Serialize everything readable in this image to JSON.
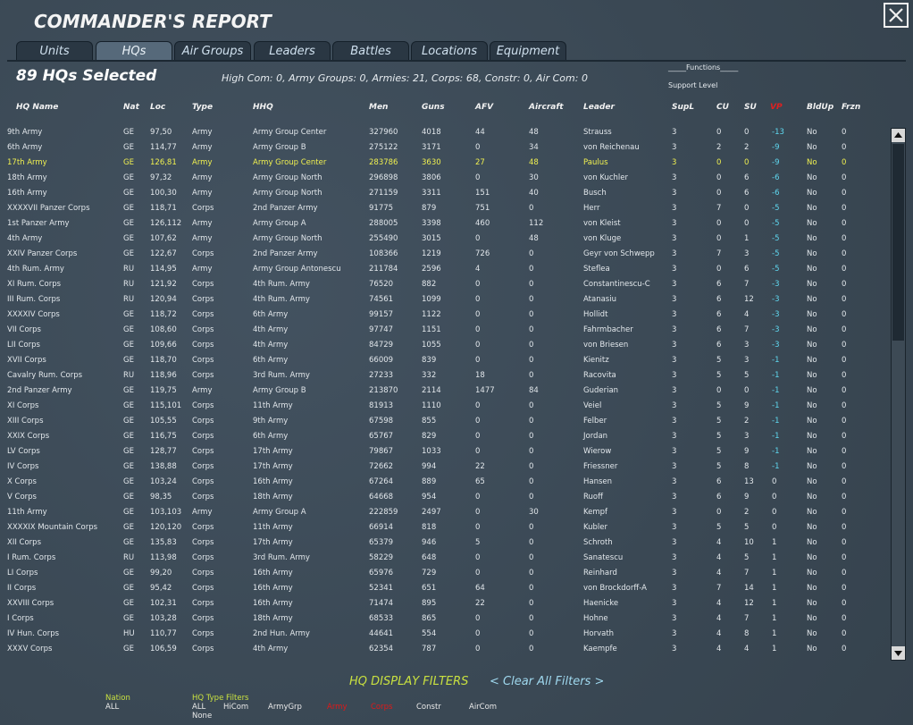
{
  "header": {
    "title": "COMMANDER'S REPORT"
  },
  "tabs": [
    {
      "label": "Units",
      "active": false
    },
    {
      "label": "HQs",
      "active": true
    },
    {
      "label": "Air Groups",
      "active": false
    },
    {
      "label": "Leaders",
      "active": false
    },
    {
      "label": "Battles",
      "active": false
    },
    {
      "label": "Locations",
      "active": false
    },
    {
      "label": "Equipment",
      "active": false
    }
  ],
  "selection_title": "89 HQs Selected",
  "summary": "High Com: 0, Army Groups: 0, Armies: 21, Corps: 68, Constr: 0, Air Com: 0",
  "functions_label": "_____Functions_____",
  "support_level": "Support Level",
  "table": {
    "columns": [
      "HQ Name",
      "Nat",
      "Loc",
      "Type",
      "HHQ",
      "Men",
      "Guns",
      "AFV",
      "Aircraft",
      "Leader",
      "SupL",
      "CU",
      "SU",
      "VP",
      "BldUp",
      "Frzn"
    ],
    "rows": [
      [
        "9th Army",
        "GE",
        "97,50",
        "Army",
        "Army Group Center",
        327960,
        4018,
        44,
        48,
        "Strauss",
        3,
        0,
        0,
        -13,
        "No",
        0
      ],
      [
        "6th Army",
        "GE",
        "114,77",
        "Army",
        "Army Group B",
        275122,
        3171,
        0,
        34,
        "von Reichenau",
        3,
        2,
        2,
        -9,
        "No",
        0
      ],
      [
        "17th Army",
        "GE",
        "126,81",
        "Army",
        "Army Group Center",
        283786,
        3630,
        27,
        48,
        "Paulus",
        3,
        0,
        0,
        -9,
        "No",
        0
      ],
      [
        "18th Army",
        "GE",
        "97,32",
        "Army",
        "Army Group North",
        296898,
        3806,
        0,
        30,
        "von Kuchler",
        3,
        0,
        6,
        -6,
        "No",
        0
      ],
      [
        "16th Army",
        "GE",
        "100,30",
        "Army",
        "Army Group North",
        271159,
        3311,
        151,
        40,
        "Busch",
        3,
        0,
        6,
        -6,
        "No",
        0
      ],
      [
        "XXXXVII Panzer Corps",
        "GE",
        "118,71",
        "Corps",
        "2nd Panzer Army",
        91775,
        879,
        751,
        0,
        "Herr",
        3,
        7,
        0,
        -5,
        "No",
        0
      ],
      [
        "1st Panzer Army",
        "GE",
        "126,112",
        "Army",
        "Army Group A",
        288005,
        3398,
        460,
        112,
        "von Kleist",
        3,
        0,
        0,
        -5,
        "No",
        0
      ],
      [
        "4th Army",
        "GE",
        "107,62",
        "Army",
        "Army Group North",
        255490,
        3015,
        0,
        48,
        "von Kluge",
        3,
        0,
        1,
        -5,
        "No",
        0
      ],
      [
        "XXIV Panzer Corps",
        "GE",
        "122,67",
        "Corps",
        "2nd Panzer Army",
        108366,
        1219,
        726,
        0,
        "Geyr von Schwepp",
        3,
        7,
        3,
        -5,
        "No",
        0
      ],
      [
        "4th Rum. Army",
        "RU",
        "114,95",
        "Army",
        "Army Group Antonescu",
        211784,
        2596,
        4,
        0,
        "Steflea",
        3,
        0,
        6,
        -5,
        "No",
        0
      ],
      [
        "XI Rum. Corps",
        "RU",
        "121,92",
        "Corps",
        "4th Rum. Army",
        76520,
        882,
        0,
        0,
        "Constantinescu-C",
        3,
        6,
        7,
        -3,
        "No",
        0
      ],
      [
        "III Rum. Corps",
        "RU",
        "120,94",
        "Corps",
        "4th Rum. Army",
        74561,
        1099,
        0,
        0,
        "Atanasiu",
        3,
        6,
        12,
        -3,
        "No",
        0
      ],
      [
        "XXXXIV Corps",
        "GE",
        "118,72",
        "Corps",
        "6th Army",
        99157,
        1122,
        0,
        0,
        "Hollidt",
        3,
        6,
        4,
        -3,
        "No",
        0
      ],
      [
        "VII Corps",
        "GE",
        "108,60",
        "Corps",
        "4th Army",
        97747,
        1151,
        0,
        0,
        "Fahrmbacher",
        3,
        6,
        7,
        -3,
        "No",
        0
      ],
      [
        "LII Corps",
        "GE",
        "109,66",
        "Corps",
        "4th Army",
        84729,
        1055,
        0,
        0,
        "von Briesen",
        3,
        6,
        3,
        -3,
        "No",
        0
      ],
      [
        "XVII Corps",
        "GE",
        "118,70",
        "Corps",
        "6th Army",
        66009,
        839,
        0,
        0,
        "Kienitz",
        3,
        5,
        3,
        -1,
        "No",
        0
      ],
      [
        "Cavalry Rum. Corps",
        "RU",
        "118,96",
        "Corps",
        "3rd Rum. Army",
        27233,
        332,
        18,
        0,
        "Racovita",
        3,
        5,
        5,
        -1,
        "No",
        0
      ],
      [
        "2nd Panzer Army",
        "GE",
        "119,75",
        "Army",
        "Army Group B",
        213870,
        2114,
        1477,
        84,
        "Guderian",
        3,
        0,
        0,
        -1,
        "No",
        0
      ],
      [
        "XI Corps",
        "GE",
        "115,101",
        "Corps",
        "11th Army",
        81913,
        1110,
        0,
        0,
        "Veiel",
        3,
        5,
        9,
        -1,
        "No",
        0
      ],
      [
        "XIII Corps",
        "GE",
        "105,55",
        "Corps",
        "9th Army",
        67598,
        855,
        0,
        0,
        "Felber",
        3,
        5,
        2,
        -1,
        "No",
        0
      ],
      [
        "XXIX Corps",
        "GE",
        "116,75",
        "Corps",
        "6th Army",
        65767,
        829,
        0,
        0,
        "Jordan",
        3,
        5,
        3,
        -1,
        "No",
        0
      ],
      [
        "LV Corps",
        "GE",
        "128,77",
        "Corps",
        "17th Army",
        79867,
        1033,
        0,
        0,
        "Wierow",
        3,
        5,
        9,
        -1,
        "No",
        0
      ],
      [
        "IV Corps",
        "GE",
        "138,88",
        "Corps",
        "17th Army",
        72662,
        994,
        22,
        0,
        "Friessner",
        3,
        5,
        8,
        -1,
        "No",
        0
      ],
      [
        "X Corps",
        "GE",
        "103,24",
        "Corps",
        "16th Army",
        67264,
        889,
        65,
        0,
        "Hansen",
        3,
        6,
        13,
        0,
        "No",
        0
      ],
      [
        "V Corps",
        "GE",
        "98,35",
        "Corps",
        "18th Army",
        64668,
        954,
        0,
        0,
        "Ruoff",
        3,
        6,
        9,
        0,
        "No",
        0
      ],
      [
        "11th Army",
        "GE",
        "103,103",
        "Army",
        "Army Group A",
        222859,
        2497,
        0,
        30,
        "Kempf",
        3,
        0,
        2,
        0,
        "No",
        0
      ],
      [
        "XXXXIX Mountain Corps",
        "GE",
        "120,120",
        "Corps",
        "11th Army",
        66914,
        818,
        0,
        0,
        "Kubler",
        3,
        5,
        5,
        0,
        "No",
        0
      ],
      [
        "XII Corps",
        "GE",
        "135,83",
        "Corps",
        "17th Army",
        65379,
        946,
        5,
        0,
        "Schroth",
        3,
        4,
        10,
        1,
        "No",
        0
      ],
      [
        "I Rum. Corps",
        "RU",
        "113,98",
        "Corps",
        "3rd Rum. Army",
        58229,
        648,
        0,
        0,
        "Sanatescu",
        3,
        4,
        5,
        1,
        "No",
        0
      ],
      [
        "LI Corps",
        "GE",
        "99,20",
        "Corps",
        "16th Army",
        65976,
        729,
        0,
        0,
        "Reinhard",
        3,
        4,
        7,
        1,
        "No",
        0
      ],
      [
        "II Corps",
        "GE",
        "95,42",
        "Corps",
        "16th Army",
        52341,
        651,
        64,
        0,
        "von Brockdorff-A",
        3,
        7,
        14,
        1,
        "No",
        0
      ],
      [
        "XXVIII Corps",
        "GE",
        "102,31",
        "Corps",
        "16th Army",
        71474,
        895,
        22,
        0,
        "Haenicke",
        3,
        4,
        12,
        1,
        "No",
        0
      ],
      [
        "I Corps",
        "GE",
        "103,28",
        "Corps",
        "18th Army",
        68533,
        865,
        0,
        0,
        "Hohne",
        3,
        4,
        7,
        1,
        "No",
        0
      ],
      [
        "IV Hun. Corps",
        "HU",
        "110,77",
        "Corps",
        "2nd Hun. Army",
        44641,
        554,
        0,
        0,
        "Horvath",
        3,
        4,
        8,
        1,
        "No",
        0
      ],
      [
        "XXXV Corps",
        "GE",
        "106,59",
        "Corps",
        "4th Army",
        62354,
        787,
        0,
        0,
        "Kaempfe",
        3,
        4,
        4,
        1,
        "No",
        0
      ]
    ]
  },
  "filters": {
    "title": "HQ DISPLAY FILTERS",
    "clear": "< Clear All Filters >",
    "nation_label": "Nation",
    "nation_value": "ALL",
    "type_label": "HQ  Type  Filters",
    "type_all": "ALL",
    "type_none": "None",
    "options": [
      {
        "label": "HiCom",
        "active": false
      },
      {
        "label": "ArmyGrp",
        "active": false
      },
      {
        "label": "Army",
        "active": true
      },
      {
        "label": "Corps",
        "active": true
      },
      {
        "label": "Constr",
        "active": false
      },
      {
        "label": "AirCom",
        "active": false
      }
    ]
  }
}
